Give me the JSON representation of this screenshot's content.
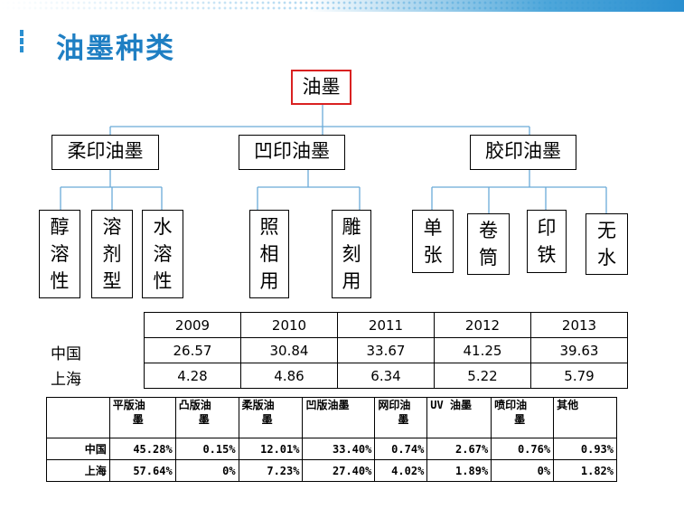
{
  "slide": {
    "title": "油墨种类"
  },
  "tree": {
    "root": "油墨",
    "categories": [
      {
        "label": "柔印油墨",
        "children": [
          "醇溶性",
          "溶剂型",
          "水溶性"
        ]
      },
      {
        "label": "凹印油墨",
        "children": [
          "照相用",
          "雕刻用"
        ]
      },
      {
        "label": "胶印油墨",
        "children": [
          "单张",
          "卷筒",
          "印铁",
          "无水"
        ]
      }
    ]
  },
  "table1": {
    "years": [
      "2009",
      "2010",
      "2011",
      "2012",
      "2013"
    ],
    "rows": [
      {
        "label": "中国",
        "values": [
          "26.57",
          "30.84",
          "33.67",
          "41.25",
          "39.63"
        ]
      },
      {
        "label": "上海",
        "values": [
          "4.28",
          "4.86",
          "6.34",
          "5.22",
          "5.79"
        ]
      }
    ]
  },
  "table2": {
    "headers": [
      [
        "平版油",
        "墨"
      ],
      [
        "凸版油",
        "墨"
      ],
      [
        "柔版油",
        "墨"
      ],
      [
        "",
        "凹版油墨"
      ],
      [
        "网印油",
        "墨"
      ],
      [
        "",
        "UV 油墨"
      ],
      [
        "喷印油",
        "墨"
      ],
      [
        "",
        "其他"
      ]
    ],
    "rows": [
      {
        "label": "中国",
        "values": [
          "45.28%",
          "0.15%",
          "12.01%",
          "33.40%",
          "0.74%",
          "2.67%",
          "0.76%",
          "0.93%"
        ]
      },
      {
        "label": "上海",
        "values": [
          "57.64%",
          "0%",
          "7.23%",
          "27.40%",
          "4.02%",
          "1.89%",
          "0%",
          "1.82%"
        ]
      }
    ]
  },
  "colors": {
    "title": "#1f7fc3",
    "root_border": "#d92121",
    "connector": "#6aaad8"
  }
}
